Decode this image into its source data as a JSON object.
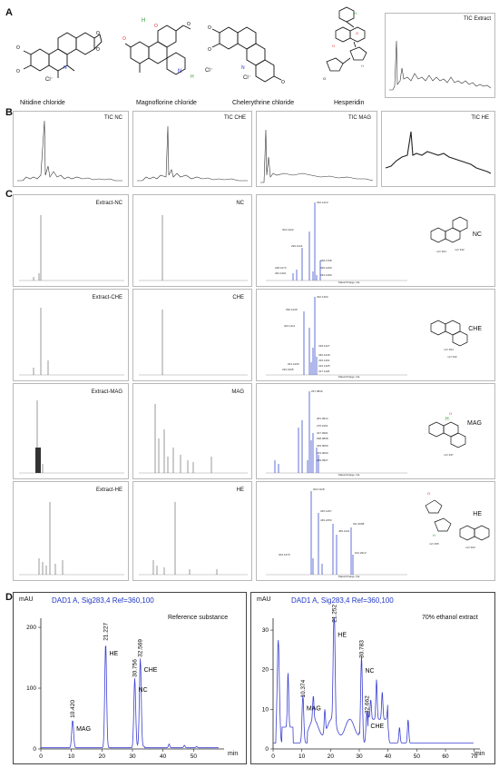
{
  "panels": {
    "A": {
      "letter": "A",
      "compounds": [
        {
          "key": "nc",
          "label": "Nitidine chloride"
        },
        {
          "key": "mag",
          "label": "Magnoflorine chloride"
        },
        {
          "key": "che",
          "label": "Chelerythrine chloride"
        },
        {
          "key": "he",
          "label": "Hesperidin"
        }
      ],
      "counterion": "Cl⁻",
      "tic_extract_title": "TIC Extract"
    },
    "B": {
      "letter": "B",
      "tic_titles": [
        "TIC NC",
        "TIC CHE",
        "TIC MAG",
        "TIC HE"
      ]
    },
    "C": {
      "letter": "C",
      "rows": [
        {
          "extract": "Extract-NC",
          "ref": "NC",
          "id": "NC",
          "peaks": [
            "332.1413",
            "304.1422",
            "290.1241",
            "348.1798",
            "248.1273",
            "262.1261",
            "330.1290",
            "333.1499"
          ]
        },
        {
          "extract": "Extract-CHE",
          "ref": "CHE",
          "id": "CHE",
          "peaks": [
            "332.1403",
            "290.1239",
            "304.1411",
            "318.1227",
            "330.1249",
            "333.1461",
            "291.1266",
            "232.1095",
            "316.1425",
            "317.1126"
          ]
        },
        {
          "extract": "Extract-MAG",
          "ref": "MAG",
          "id": "MAG",
          "peaks": [
            "297.0830",
            "281.0514",
            "276.1061",
            "327.0091",
            "298.0838",
            "329.0059",
            "333.0000",
            "299.0907"
          ]
        },
        {
          "extract": "Extract-HE",
          "ref": "HE",
          "id": "HE",
          "peaks": [
            "303.1328",
            "345.1467",
            "449.2153",
            "611.2698",
            "465.2121",
            "612.2912",
            "304.1379"
          ]
        }
      ],
      "ms_xlabel": "Mass/Charge, Da",
      "frag_labels": {
        "nc": [
          "m/z 304",
          "m/z 332"
        ],
        "che": [
          "m/z 304",
          "m/z 332"
        ],
        "mag": [
          "m/z 297"
        ],
        "he": [
          "m/z 465",
          "m/z 303"
        ]
      }
    },
    "D": {
      "letter": "D",
      "charts": [
        {
          "signal": "DAD1 A, Sig283,4 Ref=360,100",
          "note": "Reference substance",
          "yunit": "mAU",
          "xunit": "min"
        },
        {
          "signal": "DAD1 A, Sig283,4 Ref=360,100",
          "note": "70% ethanol extract",
          "yunit": "mAU",
          "xunit": "min"
        }
      ]
    }
  },
  "chart_data": [
    {
      "type": "line",
      "title": "DAD1 A, Sig283,4 Ref=360,100",
      "subtitle": "Reference substance",
      "xlabel": "min",
      "ylabel": "mAU",
      "xlim": [
        0,
        60
      ],
      "ylim": [
        0,
        215
      ],
      "xticks": [
        "0",
        "10",
        "20",
        "30",
        "40",
        "50"
      ],
      "yticks": [
        "0",
        "100",
        "200"
      ],
      "grid": false,
      "peaks": [
        {
          "rt": 10.42,
          "height": 45,
          "rt_label": "10.420",
          "name": "MAG"
        },
        {
          "rt": 21.227,
          "height": 172,
          "rt_label": "21.227",
          "name": "HE"
        },
        {
          "rt": 30.756,
          "height": 112,
          "rt_label": "30.756",
          "name": "NC"
        },
        {
          "rt": 32.569,
          "height": 145,
          "rt_label": "32.569",
          "name": "CHE"
        }
      ]
    },
    {
      "type": "line",
      "title": "DAD1 A, Sig283,4 Ref=360,100",
      "subtitle": "70% ethanol extract",
      "xlabel": "min",
      "ylabel": "mAU",
      "xlim": [
        0,
        72
      ],
      "ylim": [
        0,
        33
      ],
      "xticks": [
        "0",
        "10",
        "20",
        "30",
        "40",
        "50",
        "60",
        "70"
      ],
      "yticks": [
        "0",
        "10",
        "20",
        "30"
      ],
      "grid": false,
      "peaks": [
        {
          "rt": 10.374,
          "height": 12,
          "rt_label": "10.374",
          "name": "MAG"
        },
        {
          "rt": 21.252,
          "height": 31,
          "rt_label": "21.252",
          "name": "HE"
        },
        {
          "rt": 30.783,
          "height": 22,
          "rt_label": "30.783",
          "name": "NC"
        },
        {
          "rt": 32.662,
          "height": 8,
          "rt_label": "32.662",
          "name": "CHE"
        }
      ]
    }
  ]
}
